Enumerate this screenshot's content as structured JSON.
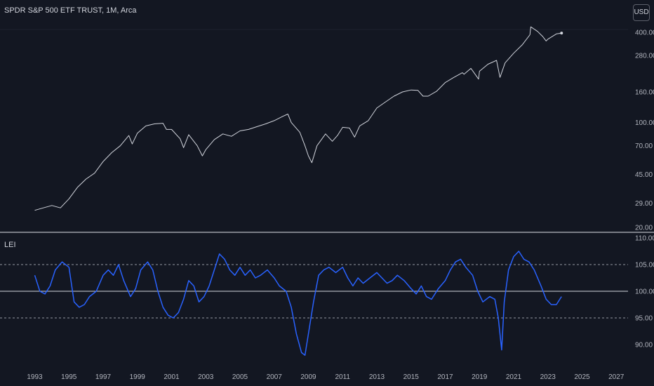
{
  "symbol_title": "SPDR S&P 500 ETF TRUST, 1M, Arca",
  "currency_label": "USD",
  "indicator_label": "LEI",
  "colors": {
    "background": "#131722",
    "price_line": "#d1d4dc",
    "indicator_line": "#2962ff",
    "separator": "#e0e3eb",
    "grid": "#1e222d",
    "text": "#b2b5be"
  },
  "chart_data": [
    {
      "type": "line",
      "title": "SPDR S&P 500 ETF TRUST, 1M, Arca",
      "y_scale": "log",
      "y_ticks": [
        {
          "value": 400,
          "label": "400.00"
        },
        {
          "value": 280,
          "label": "280.00"
        },
        {
          "value": 160,
          "label": "160.00"
        },
        {
          "value": 100,
          "label": "100.00"
        },
        {
          "value": 70,
          "label": "70.00"
        },
        {
          "value": 45,
          "label": "45.00"
        },
        {
          "value": 29,
          "label": "29.00"
        },
        {
          "value": 20,
          "label": "20.00"
        }
      ],
      "series": [
        {
          "x": [
            1993.0,
            1993.5,
            1994.0,
            1994.5,
            1995.0,
            1995.5,
            1996.0,
            1996.5,
            1997.0,
            1997.5,
            1998.0,
            1998.5,
            1998.7,
            1999.0,
            1999.5,
            2000.0,
            2000.5,
            2000.7,
            2001.0,
            2001.5,
            2001.7,
            2002.0,
            2002.5,
            2002.8,
            2003.0,
            2003.5,
            2004.0,
            2004.5,
            2005.0,
            2005.5,
            2006.0,
            2006.5,
            2007.0,
            2007.5,
            2007.8,
            2008.0,
            2008.5,
            2008.8,
            2009.0,
            2009.2,
            2009.5,
            2010.0,
            2010.4,
            2010.7,
            2011.0,
            2011.4,
            2011.7,
            2012.0,
            2012.5,
            2013.0,
            2013.5,
            2014.0,
            2014.5,
            2015.0,
            2015.4,
            2015.7,
            2016.0,
            2016.5,
            2017.0,
            2017.5,
            2018.0,
            2018.1,
            2018.5,
            2018.95,
            2019.0,
            2019.5,
            2020.0,
            2020.2,
            2020.5,
            2021.0,
            2021.5,
            2021.95,
            2022.0,
            2022.4,
            2022.7,
            2022.9,
            2023.0,
            2023.5,
            2023.8
          ],
          "values": [
            26,
            27,
            28,
            27,
            31,
            37,
            42,
            46,
            55,
            63,
            70,
            82,
            72,
            85,
            95,
            98,
            99,
            90,
            90,
            78,
            68,
            83,
            70,
            60,
            66,
            77,
            84,
            81,
            88,
            90,
            94,
            98,
            103,
            110,
            114,
            100,
            86,
            70,
            60,
            54,
            70,
            84,
            75,
            82,
            93,
            92,
            80,
            95,
            103,
            125,
            137,
            150,
            160,
            165,
            164,
            150,
            150,
            162,
            185,
            200,
            215,
            210,
            230,
            195,
            220,
            245,
            260,
            200,
            250,
            290,
            330,
            385,
            435,
            405,
            375,
            350,
            360,
            390,
            395
          ]
        }
      ]
    },
    {
      "type": "line",
      "title": "LEI",
      "ylim": [
        87,
        110
      ],
      "y_ticks": [
        {
          "value": 110,
          "label": "110.00"
        },
        {
          "value": 105,
          "label": "105.00"
        },
        {
          "value": 100,
          "label": "100.00"
        },
        {
          "value": 95,
          "label": "95.00"
        },
        {
          "value": 90,
          "label": "90.00"
        }
      ],
      "reference_lines": [
        105,
        100,
        95
      ],
      "x_ticks": [
        "1993",
        "1995",
        "1997",
        "1999",
        "2001",
        "2003",
        "2005",
        "2007",
        "2009",
        "2011",
        "2013",
        "2015",
        "2017",
        "2019",
        "2021",
        "2023",
        "2025",
        "2027"
      ],
      "series": [
        {
          "x": [
            1993.0,
            1993.3,
            1993.6,
            1993.9,
            1994.2,
            1994.6,
            1995.0,
            1995.3,
            1995.6,
            1995.9,
            1996.2,
            1996.6,
            1997.0,
            1997.3,
            1997.6,
            1997.9,
            1998.2,
            1998.6,
            1998.9,
            1999.2,
            1999.6,
            1999.9,
            2000.2,
            2000.5,
            2000.8,
            2001.1,
            2001.4,
            2001.7,
            2002.0,
            2002.3,
            2002.6,
            2002.9,
            2003.2,
            2003.5,
            2003.8,
            2004.1,
            2004.4,
            2004.7,
            2005.0,
            2005.3,
            2005.6,
            2005.9,
            2006.2,
            2006.6,
            2007.0,
            2007.3,
            2007.7,
            2008.0,
            2008.3,
            2008.6,
            2008.8,
            2009.0,
            2009.3,
            2009.6,
            2009.9,
            2010.2,
            2010.6,
            2011.0,
            2011.3,
            2011.6,
            2011.9,
            2012.2,
            2012.6,
            2013.0,
            2013.3,
            2013.6,
            2013.9,
            2014.2,
            2014.6,
            2015.0,
            2015.3,
            2015.6,
            2015.9,
            2016.2,
            2016.6,
            2017.0,
            2017.3,
            2017.6,
            2017.9,
            2018.2,
            2018.6,
            2018.9,
            2019.2,
            2019.6,
            2019.9,
            2020.1,
            2020.3,
            2020.45,
            2020.7,
            2021.0,
            2021.3,
            2021.6,
            2021.9,
            2022.2,
            2022.6,
            2022.9,
            2023.2,
            2023.5,
            2023.8
          ],
          "values": [
            103,
            100,
            99.5,
            101,
            104,
            105.5,
            104.5,
            98,
            97,
            97.5,
            99,
            100,
            103,
            104,
            103,
            105,
            102,
            99,
            100.5,
            104,
            105.5,
            104,
            100,
            97,
            95.5,
            95,
            96,
            98.5,
            102,
            101,
            98,
            99,
            101,
            104,
            107,
            106,
            104,
            103,
            104.5,
            103,
            104,
            102.5,
            103,
            104,
            102.5,
            101,
            100,
            97,
            92,
            88.5,
            88,
            92,
            98,
            103,
            104,
            104.5,
            103.5,
            104.5,
            102.5,
            101,
            102.5,
            101.5,
            102.5,
            103.5,
            102.5,
            101.5,
            102,
            103,
            102,
            100.5,
            99.5,
            101,
            99,
            98.5,
            100.5,
            102,
            104,
            105.5,
            106,
            104.5,
            103,
            100,
            98,
            99,
            98.5,
            95,
            89,
            98,
            104,
            106.5,
            107.5,
            106,
            105.5,
            104,
            101,
            98.5,
            97.5,
            97.5,
            99
          ]
        }
      ]
    }
  ]
}
